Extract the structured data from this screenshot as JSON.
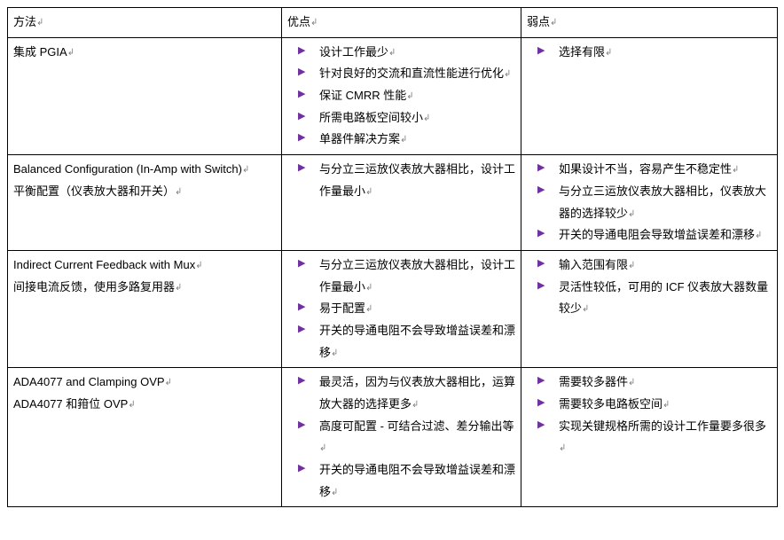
{
  "header": {
    "method": "方法",
    "pros": "优点",
    "cons": "弱点"
  },
  "rows": [
    {
      "method_lines": [
        "集成 PGIA"
      ],
      "pros": [
        "设计工作最少",
        "针对良好的交流和直流性能进行优化",
        "保证 CMRR 性能",
        "所需电路板空间较小",
        "单器件解决方案"
      ],
      "cons": [
        "选择有限"
      ]
    },
    {
      "method_lines": [
        "Balanced Configuration (In-Amp with Switch)",
        "平衡配置（仪表放大器和开关）"
      ],
      "pros": [
        "与分立三运放仪表放大器相比，设计工作量最小"
      ],
      "cons": [
        "如果设计不当，容易产生不稳定性",
        "与分立三运放仪表放大器相比，仪表放大器的选择较少",
        "开关的导通电阻会导致增益误差和漂移"
      ]
    },
    {
      "method_lines": [
        "Indirect Current Feedback with Mux",
        "间接电流反馈，使用多路复用器"
      ],
      "pros": [
        "与分立三运放仪表放大器相比，设计工作量最小",
        "易于配置",
        "开关的导通电阻不会导致增益误差和漂移"
      ],
      "cons": [
        "输入范围有限",
        "灵活性较低，可用的 ICF 仪表放大器数量较少"
      ]
    },
    {
      "method_lines": [
        "ADA4077 and Clamping OVP",
        "ADA4077 和箝位 OVP"
      ],
      "pros": [
        "最灵活，因为与仪表放大器相比，运算放大器的选择更多",
        "高度可配置 - 可结合过滤、差分输出等",
        "开关的导通电阻不会导致增益误差和漂移"
      ],
      "cons": [
        "需要较多器件",
        "需要较多电路板空间",
        "实现关键规格所需的设计工作量要多很多"
      ]
    }
  ]
}
